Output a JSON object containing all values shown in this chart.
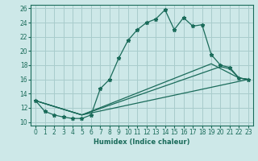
{
  "background_color": "#cde8e8",
  "grid_color": "#a8cccc",
  "line_color": "#1a6b5a",
  "xlabel": "Humidex (Indice chaleur)",
  "xlim": [
    -0.5,
    23.5
  ],
  "ylim": [
    9.5,
    26.5
  ],
  "xticks": [
    0,
    1,
    2,
    3,
    4,
    5,
    6,
    7,
    8,
    9,
    10,
    11,
    12,
    13,
    14,
    15,
    16,
    17,
    18,
    19,
    20,
    21,
    22,
    23
  ],
  "yticks": [
    10,
    12,
    14,
    16,
    18,
    20,
    22,
    24,
    26
  ],
  "series": [
    {
      "x": [
        0,
        1,
        2,
        3,
        4,
        5,
        6,
        7,
        8,
        9,
        10,
        11,
        12,
        13,
        14,
        15,
        16,
        17,
        18,
        19,
        20,
        21,
        22,
        23
      ],
      "y": [
        13,
        11.5,
        11,
        10.7,
        10.5,
        10.5,
        11,
        14.7,
        16,
        19,
        21.5,
        23,
        24,
        24.5,
        25.8,
        23,
        24.7,
        23.5,
        23.7,
        19.5,
        18,
        17.7,
        16.2,
        16
      ],
      "marker": true
    },
    {
      "x": [
        0,
        5,
        23
      ],
      "y": [
        13,
        11,
        16
      ],
      "marker": false
    },
    {
      "x": [
        0,
        5,
        19,
        22,
        23
      ],
      "y": [
        13,
        11,
        18.2,
        16.2,
        16
      ],
      "marker": false
    },
    {
      "x": [
        0,
        5,
        20,
        21,
        22,
        23
      ],
      "y": [
        13,
        11,
        17.8,
        17.5,
        16.2,
        16
      ],
      "marker": false
    }
  ]
}
